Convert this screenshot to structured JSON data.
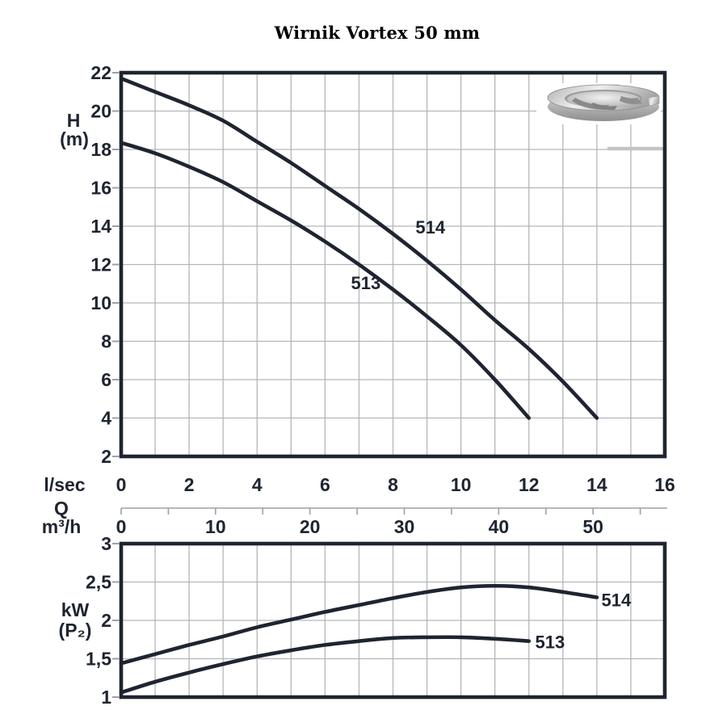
{
  "title": "Wirnik Vortex 50 mm",
  "colors": {
    "ink": "#1e2430",
    "grid": "#b4b6ba",
    "axis_gray": "#9ca1a7",
    "title_color": "#000000",
    "impeller_gray": "#c4c4c4"
  },
  "impeller_icon": "vortex-impeller-image",
  "chart_data": [
    {
      "type": "line",
      "name": "head-vs-flow",
      "ylabel_lines": [
        "H",
        "(m)"
      ],
      "ylim": [
        2,
        22
      ],
      "ytick_values": [
        22,
        20,
        18,
        16,
        14,
        12,
        10,
        8,
        6,
        4,
        2
      ],
      "ytick_labels": [
        "22",
        "20",
        "18",
        "16",
        "14",
        "12",
        "10",
        "8",
        "6",
        "4",
        "2"
      ],
      "xlim": [
        0,
        16
      ],
      "xgrid_step": 1,
      "grid": true,
      "legend_position": "on-curve",
      "series": [
        {
          "name": "514",
          "points": [
            [
              0,
              21.7
            ],
            [
              1,
              21.0
            ],
            [
              2,
              20.3
            ],
            [
              3,
              19.5
            ],
            [
              4,
              18.4
            ],
            [
              5,
              17.3
            ],
            [
              6,
              16.1
            ],
            [
              7,
              14.9
            ],
            [
              8,
              13.6
            ],
            [
              9,
              12.2
            ],
            [
              10,
              10.7
            ],
            [
              11,
              9.1
            ],
            [
              12,
              7.6
            ],
            [
              13,
              5.9
            ],
            [
              14,
              4.0
            ]
          ],
          "label_at": [
            9.1,
            13.95
          ]
        },
        {
          "name": "513",
          "points": [
            [
              0,
              18.35
            ],
            [
              1,
              17.8
            ],
            [
              2,
              17.1
            ],
            [
              3,
              16.3
            ],
            [
              4,
              15.3
            ],
            [
              5,
              14.3
            ],
            [
              6,
              13.2
            ],
            [
              7,
              12.0
            ],
            [
              8,
              10.7
            ],
            [
              9,
              9.3
            ],
            [
              10,
              7.8
            ],
            [
              11,
              6.0
            ],
            [
              12,
              4.0
            ]
          ],
          "label_at": [
            7.2,
            11.05
          ]
        }
      ]
    },
    {
      "type": "line",
      "name": "power-vs-flow",
      "ylabel_lines": [
        "kW",
        "(P₂)"
      ],
      "ylim": [
        1,
        3
      ],
      "ytick_values": [
        3,
        2.5,
        2,
        1.5,
        1
      ],
      "ytick_labels": [
        "3",
        "2,5",
        "2",
        "1,5",
        "1"
      ],
      "xlim": [
        0,
        16
      ],
      "xgrid_step": 1,
      "grid": true,
      "legend_position": "on-curve",
      "series": [
        {
          "name": "514",
          "points": [
            [
              0,
              1.44
            ],
            [
              1,
              1.56
            ],
            [
              2,
              1.68
            ],
            [
              3,
              1.79
            ],
            [
              4,
              1.91
            ],
            [
              5,
              2.01
            ],
            [
              6,
              2.11
            ],
            [
              7,
              2.2
            ],
            [
              8,
              2.29
            ],
            [
              9,
              2.37
            ],
            [
              10,
              2.43
            ],
            [
              11,
              2.45
            ],
            [
              12,
              2.43
            ],
            [
              13,
              2.37
            ],
            [
              14,
              2.3
            ]
          ],
          "label_at": [
            14.57,
            2.27
          ]
        },
        {
          "name": "513",
          "points": [
            [
              0,
              1.06
            ],
            [
              1,
              1.2
            ],
            [
              2,
              1.32
            ],
            [
              3,
              1.43
            ],
            [
              4,
              1.53
            ],
            [
              5,
              1.61
            ],
            [
              6,
              1.68
            ],
            [
              7,
              1.73
            ],
            [
              8,
              1.77
            ],
            [
              9,
              1.78
            ],
            [
              10,
              1.78
            ],
            [
              11,
              1.76
            ],
            [
              12,
              1.73
            ]
          ],
          "label_at": [
            12.62,
            1.72
          ]
        }
      ]
    }
  ],
  "x_axis": {
    "primary_unit": "l/sec",
    "primary_ticks": [
      "0",
      "2",
      "4",
      "6",
      "8",
      "10",
      "12",
      "14",
      "16"
    ],
    "quantity_symbol": "Q",
    "secondary_unit": "m³/h",
    "secondary_ticks": [
      "0",
      "10",
      "20",
      "30",
      "40",
      "50"
    ],
    "secondary_minor_step": 5,
    "secondary_max": 55,
    "unit_conversion": 3.6
  }
}
